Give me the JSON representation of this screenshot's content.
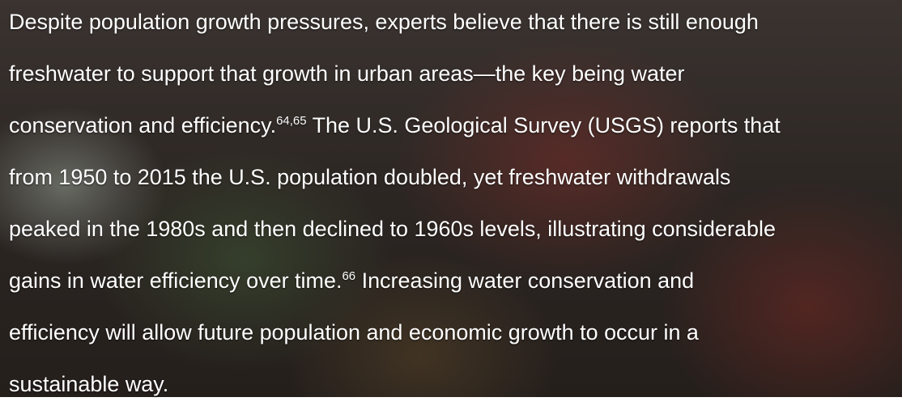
{
  "paragraph": {
    "lines": [
      [
        "Despite population growth pressures, experts believe that there is still enough"
      ],
      [
        "freshwater to support that growth in urban areas—the key being water"
      ],
      [
        "conservation and efficiency.",
        {
          "sup": "64,65"
        },
        " The U.S. Geological Survey (USGS) reports that"
      ],
      [
        "from 1950 to 2015 the U.S. population doubled, yet freshwater withdrawals"
      ],
      [
        "peaked in the 1980s and then declined to 1960s levels, illustrating considerable"
      ],
      [
        "gains in water efficiency over time.",
        {
          "sup": "66"
        },
        " Increasing water conservation and"
      ],
      [
        "efficiency will allow future population and economic growth to occur in a"
      ],
      [
        "sustainable way."
      ]
    ]
  }
}
